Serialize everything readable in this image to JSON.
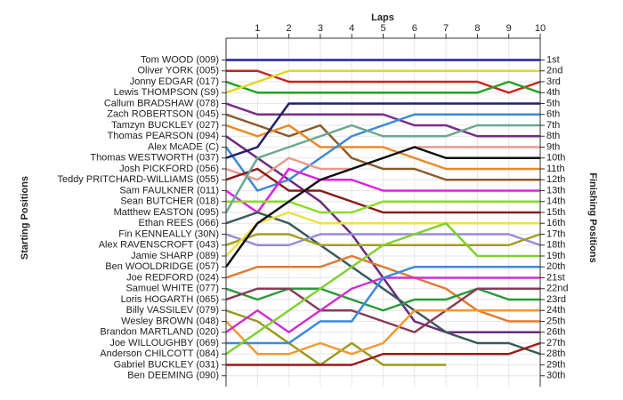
{
  "chart_data": {
    "type": "line",
    "title": "Laps",
    "y_label": "Starting Positions",
    "y2_label": "Finishing Positions",
    "x": [
      0,
      1,
      2,
      3,
      4,
      5,
      6,
      7,
      8,
      9,
      10
    ],
    "xlim": [
      0,
      10
    ],
    "xticks": [
      1,
      2,
      3,
      4,
      5,
      6,
      7,
      8,
      9,
      10
    ],
    "ylim": [
      31,
      -1
    ],
    "yticks": [
      {
        "value": 1,
        "label": "1st"
      },
      {
        "value": 2,
        "label": "2nd"
      },
      {
        "value": 3,
        "label": "3rd"
      },
      {
        "value": 4,
        "label": "4th"
      },
      {
        "value": 5,
        "label": "5th"
      },
      {
        "value": 6,
        "label": "6th"
      },
      {
        "value": 7,
        "label": "7th"
      },
      {
        "value": 8,
        "label": "8th"
      },
      {
        "value": 9,
        "label": "9th"
      },
      {
        "value": 10,
        "label": "10th"
      },
      {
        "value": 11,
        "label": "11th"
      },
      {
        "value": 12,
        "label": "12th"
      },
      {
        "value": 13,
        "label": "13th"
      },
      {
        "value": 14,
        "label": "14th"
      },
      {
        "value": 15,
        "label": "15th"
      },
      {
        "value": 16,
        "label": "16th"
      },
      {
        "value": 17,
        "label": "17th"
      },
      {
        "value": 18,
        "label": "18th"
      },
      {
        "value": 19,
        "label": "19th"
      },
      {
        "value": 20,
        "label": "20th"
      },
      {
        "value": 21,
        "label": "21st"
      },
      {
        "value": 22,
        "label": "22nd"
      },
      {
        "value": 23,
        "label": "23rd"
      },
      {
        "value": 24,
        "label": "24th"
      },
      {
        "value": 25,
        "label": "25th"
      },
      {
        "value": 26,
        "label": "26th"
      },
      {
        "value": 27,
        "label": "27th"
      },
      {
        "value": 28,
        "label": "28th"
      },
      {
        "value": 29,
        "label": "29th"
      },
      {
        "value": 30,
        "label": "30th"
      }
    ],
    "grid": true,
    "series": [
      {
        "name": "Tom WOOD (009)",
        "color": "#1f1fa0",
        "values": [
          1,
          1,
          1,
          1,
          1,
          1,
          1,
          1,
          1,
          1,
          1
        ]
      },
      {
        "name": "Oliver YORK (005)",
        "color": "#cc2222",
        "values": [
          2,
          2,
          3,
          3,
          3,
          3,
          3,
          3,
          3,
          4,
          3
        ]
      },
      {
        "name": "Jonny EDGAR (017)",
        "color": "#22a022",
        "values": [
          3,
          4,
          4,
          4,
          4,
          4,
          4,
          4,
          4,
          3,
          4
        ]
      },
      {
        "name": "Lewis THOMPSON (S9)",
        "color": "#e0d820",
        "values": [
          4,
          3,
          2,
          2,
          2,
          2,
          2,
          2,
          2,
          2,
          2
        ]
      },
      {
        "name": "Callum BRADSHAW (078)",
        "color": "#7a2a8a",
        "values": [
          5,
          6,
          6,
          6,
          6,
          6,
          7,
          7,
          8,
          8,
          8
        ]
      },
      {
        "name": "Zach ROBERTSON (045)",
        "color": "#8b5a2b",
        "values": [
          6,
          7,
          8,
          7,
          10,
          11,
          11,
          12,
          12,
          12,
          12
        ]
      },
      {
        "name": "Tamzyn BUCKLEY (027)",
        "color": "#ee8822",
        "values": [
          7,
          8,
          7,
          9,
          9,
          9,
          10,
          11,
          11,
          11,
          11
        ]
      },
      {
        "name": "Thomas PEARSON (094)",
        "color": "#6a2a7a",
        "values": [
          8,
          10,
          12,
          14,
          17,
          21,
          25,
          26,
          26,
          26,
          26
        ]
      },
      {
        "name": "Alex McADE (C)",
        "color": "#3a8ad8",
        "values": [
          9,
          13,
          12,
          10,
          8,
          7,
          6,
          6,
          6,
          6,
          6
        ]
      },
      {
        "name": "Thomas WESTWORTH (037)",
        "color": "#222266",
        "values": [
          10,
          9,
          5,
          5,
          5,
          5,
          5,
          5,
          5,
          5,
          5
        ]
      },
      {
        "name": "Josh PICKFORD (056)",
        "color": "#e89a8a",
        "values": [
          11,
          12,
          10,
          11,
          11,
          10,
          9,
          9,
          9,
          9,
          9
        ]
      },
      {
        "name": "Teddy PRITCHARD-WILLIAMS (055)",
        "color": "#8a1a1a",
        "values": [
          12,
          11,
          13,
          13,
          14,
          15,
          15,
          15,
          15,
          15,
          15
        ]
      },
      {
        "name": "Sam FAULKNER (011)",
        "color": "#e020e0",
        "values": [
          13,
          15,
          11,
          12,
          12,
          13,
          13,
          13,
          13,
          13,
          13
        ]
      },
      {
        "name": "Sean BUTCHER (018)",
        "color": "#88dd22",
        "values": [
          14,
          14,
          14,
          15,
          15,
          14,
          14,
          14,
          14,
          14,
          14
        ]
      },
      {
        "name": "Matthew EASTON (095)",
        "color": "#6aa890",
        "values": [
          15,
          10,
          9,
          8,
          7,
          8,
          8,
          8,
          7,
          7,
          7
        ]
      },
      {
        "name": "Ethan REES (066)",
        "color": "#3a5a5a",
        "values": [
          16,
          15,
          16,
          18,
          20,
          22,
          24,
          26,
          27,
          27,
          28
        ]
      },
      {
        "name": "Fin KENNEALLY (30N)",
        "color": "#9a8ad8",
        "values": [
          17,
          18,
          18,
          17,
          17,
          17,
          17,
          17,
          17,
          17,
          18
        ]
      },
      {
        "name": "Alex RAVENSCROFT (043)",
        "color": "#a0a020",
        "values": [
          18,
          17,
          17,
          18,
          18,
          18,
          18,
          18,
          18,
          18,
          17
        ]
      },
      {
        "name": "Jamie SHARP (089)",
        "color": "#f0e040",
        "values": [
          19,
          16,
          15,
          16,
          16,
          16,
          16,
          16,
          16,
          16,
          16
        ]
      },
      {
        "name": "Ben WOOLDRIDGE (057)",
        "color": "#111111",
        "values": [
          20,
          16,
          14,
          12,
          11,
          10,
          9,
          10,
          10,
          10,
          10
        ]
      },
      {
        "name": "Joe REDFORD (024)",
        "color": "#e07a30",
        "values": [
          21,
          20,
          20,
          20,
          19,
          20,
          21,
          22,
          24,
          25,
          25
        ]
      },
      {
        "name": "Samuel WHITE (077)",
        "color": "#2a9a3a",
        "values": [
          22,
          23,
          22,
          22,
          23,
          24,
          23,
          23,
          22,
          23,
          23
        ]
      },
      {
        "name": "Loris HOGARTH (065)",
        "color": "#8a3a5a",
        "values": [
          23,
          22,
          22,
          24,
          24,
          25,
          26,
          24,
          22,
          22,
          22
        ]
      },
      {
        "name": "Billy VASSILEV (079)",
        "color": "#9a9a20",
        "values": [
          24,
          25,
          27,
          29,
          27,
          29,
          29,
          29,
          null,
          null,
          null
        ]
      },
      {
        "name": "Wesley BROWN (048)",
        "color": "#f09a30",
        "values": [
          25,
          28,
          28,
          27,
          28,
          27,
          24,
          24,
          24,
          24,
          24
        ]
      },
      {
        "name": "Brandon MARTLAND (020)",
        "color": "#d030d0",
        "values": [
          26,
          24,
          26,
          24,
          22,
          21,
          21,
          21,
          21,
          21,
          21
        ]
      },
      {
        "name": "Joe WILLOUGHBY (069)",
        "color": "#3a8ae0",
        "values": [
          27,
          27,
          27,
          25,
          25,
          21,
          20,
          20,
          20,
          20,
          20
        ]
      },
      {
        "name": "Anderson CHILCOTT (084)",
        "color": "#80d030",
        "values": [
          28,
          26,
          24,
          22,
          20,
          18,
          17,
          16,
          19,
          19,
          19
        ]
      },
      {
        "name": "Gabriel BUCKLEY (031)",
        "color": "#9a1a1a",
        "values": [
          29,
          29,
          29,
          29,
          29,
          28,
          28,
          28,
          28,
          28,
          27
        ]
      },
      {
        "name": "Ben DEEMING (090)",
        "color": "#888888",
        "values": [
          30,
          null,
          null,
          null,
          null,
          null,
          null,
          null,
          null,
          null,
          null
        ]
      }
    ]
  }
}
